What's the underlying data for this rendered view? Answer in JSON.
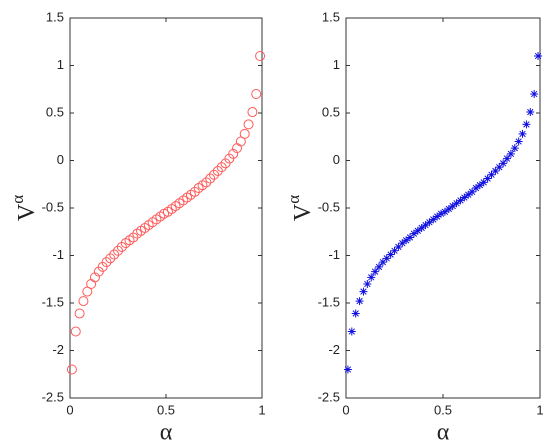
{
  "chart_data": [
    {
      "type": "scatter",
      "marker": "circle",
      "color": "#ff5a5a",
      "xlabel": "α",
      "ylabel": {
        "base": "V",
        "sup": "α"
      },
      "xlim": [
        0,
        1
      ],
      "ylim": [
        -2.5,
        1.5
      ],
      "xticks": [
        0,
        0.5,
        1
      ],
      "yticks": [
        -2.5,
        -2,
        -1.5,
        -1,
        -0.5,
        0,
        0.5,
        1,
        1.5
      ],
      "x": [
        0.01,
        0.03,
        0.05,
        0.07,
        0.09,
        0.11,
        0.13,
        0.15,
        0.17,
        0.19,
        0.21,
        0.23,
        0.25,
        0.27,
        0.29,
        0.31,
        0.33,
        0.35,
        0.37,
        0.39,
        0.41,
        0.43,
        0.45,
        0.47,
        0.49,
        0.51,
        0.53,
        0.55,
        0.57,
        0.59,
        0.61,
        0.63,
        0.65,
        0.67,
        0.69,
        0.71,
        0.73,
        0.75,
        0.77,
        0.79,
        0.81,
        0.83,
        0.85,
        0.87,
        0.89,
        0.91,
        0.93,
        0.95,
        0.97,
        0.99
      ],
      "values": [
        -2.2,
        -1.8,
        -1.61,
        -1.48,
        -1.38,
        -1.3,
        -1.23,
        -1.17,
        -1.12,
        -1.07,
        -1.03,
        -0.99,
        -0.95,
        -0.91,
        -0.87,
        -0.84,
        -0.81,
        -0.77,
        -0.74,
        -0.71,
        -0.68,
        -0.65,
        -0.62,
        -0.59,
        -0.56,
        -0.54,
        -0.51,
        -0.48,
        -0.45,
        -0.42,
        -0.39,
        -0.36,
        -0.33,
        -0.29,
        -0.26,
        -0.23,
        -0.19,
        -0.15,
        -0.11,
        -0.07,
        -0.03,
        0.02,
        0.07,
        0.13,
        0.2,
        0.28,
        0.38,
        0.51,
        0.7,
        1.1
      ]
    },
    {
      "type": "scatter",
      "marker": "asterisk",
      "color": "#1010e0",
      "xlabel": "α",
      "ylabel": {
        "base": "V",
        "sup": "α"
      },
      "xlim": [
        0,
        1
      ],
      "ylim": [
        -2.5,
        1.5
      ],
      "xticks": [
        0,
        0.5,
        1
      ],
      "yticks": [
        -2.5,
        -2,
        -1.5,
        -1,
        -0.5,
        0,
        0.5,
        1,
        1.5
      ],
      "x": [
        0.01,
        0.03,
        0.05,
        0.07,
        0.09,
        0.11,
        0.13,
        0.15,
        0.17,
        0.19,
        0.21,
        0.23,
        0.25,
        0.27,
        0.29,
        0.31,
        0.33,
        0.35,
        0.37,
        0.39,
        0.41,
        0.43,
        0.45,
        0.47,
        0.49,
        0.51,
        0.53,
        0.55,
        0.57,
        0.59,
        0.61,
        0.63,
        0.65,
        0.67,
        0.69,
        0.71,
        0.73,
        0.75,
        0.77,
        0.79,
        0.81,
        0.83,
        0.85,
        0.87,
        0.89,
        0.91,
        0.93,
        0.95,
        0.97,
        0.99
      ],
      "values": [
        -2.2,
        -1.8,
        -1.61,
        -1.48,
        -1.38,
        -1.3,
        -1.23,
        -1.17,
        -1.12,
        -1.07,
        -1.03,
        -0.99,
        -0.95,
        -0.91,
        -0.87,
        -0.84,
        -0.81,
        -0.77,
        -0.74,
        -0.71,
        -0.68,
        -0.65,
        -0.62,
        -0.59,
        -0.56,
        -0.54,
        -0.51,
        -0.48,
        -0.45,
        -0.42,
        -0.39,
        -0.36,
        -0.33,
        -0.29,
        -0.26,
        -0.23,
        -0.19,
        -0.15,
        -0.11,
        -0.07,
        -0.03,
        0.02,
        0.07,
        0.13,
        0.2,
        0.28,
        0.38,
        0.51,
        0.7,
        1.1
      ]
    }
  ]
}
